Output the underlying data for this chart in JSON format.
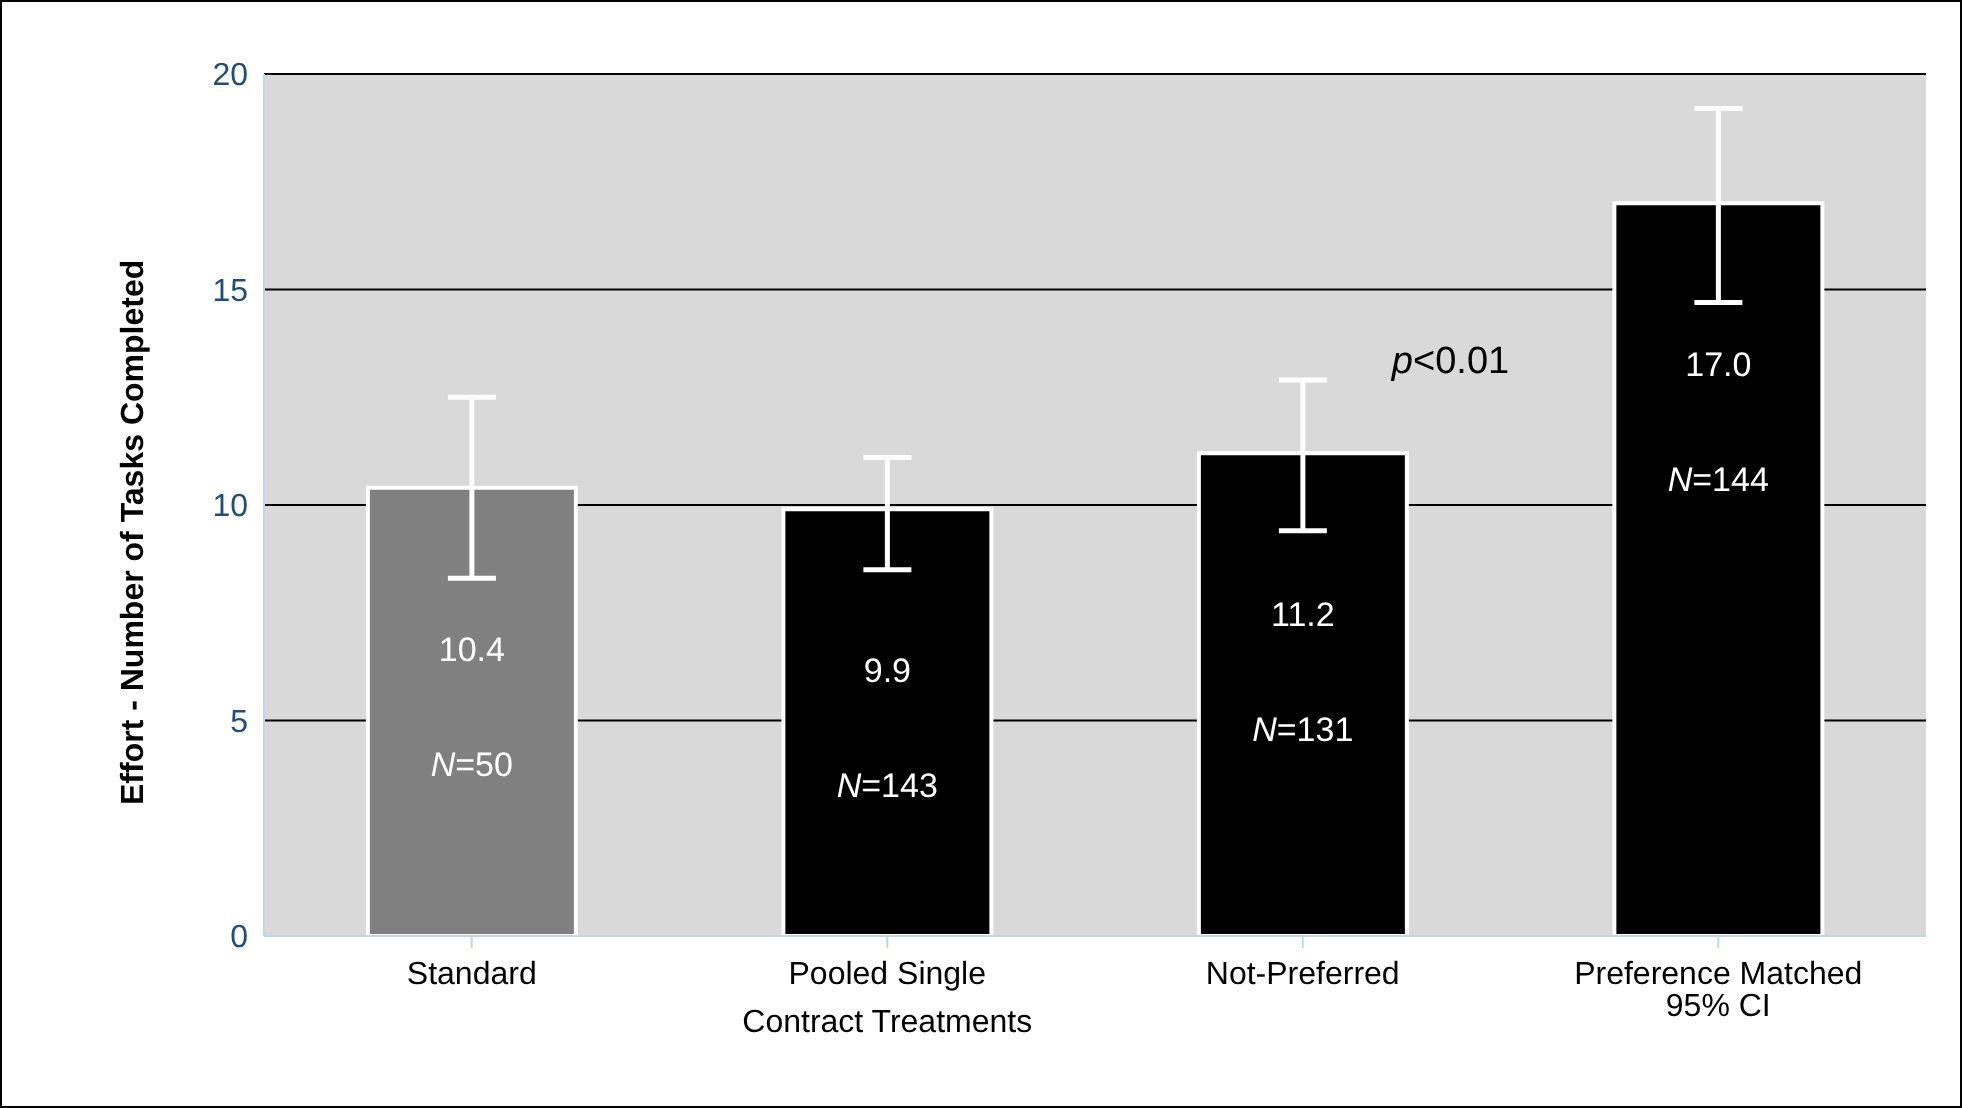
{
  "chart_data": {
    "type": "bar",
    "ylabel": "Effort - Number of Tasks Completed",
    "categories": [
      "Standard",
      "Pooled Single Contract Treatments",
      "Not-Preferred",
      "Preference Matched"
    ],
    "values": [
      10.4,
      9.9,
      11.2,
      17.0
    ],
    "colors": [
      "#808080",
      "#000000",
      "#000000",
      "#000000"
    ],
    "errors": [
      [
        8.3,
        12.5
      ],
      [
        8.5,
        11.1
      ],
      [
        9.4,
        12.9
      ],
      [
        14.7,
        19.2
      ]
    ],
    "value_labels": [
      "10.4",
      "9.9",
      "11.2",
      "17.0"
    ],
    "ylim": [
      0,
      20
    ],
    "yticks": [
      0,
      5,
      10,
      15,
      20
    ],
    "grid": "y",
    "legend": false,
    "annotations": [
      "p<0.01",
      "95% CI",
      "N=50",
      "N=143",
      "N=131",
      "N=144"
    ]
  }
}
